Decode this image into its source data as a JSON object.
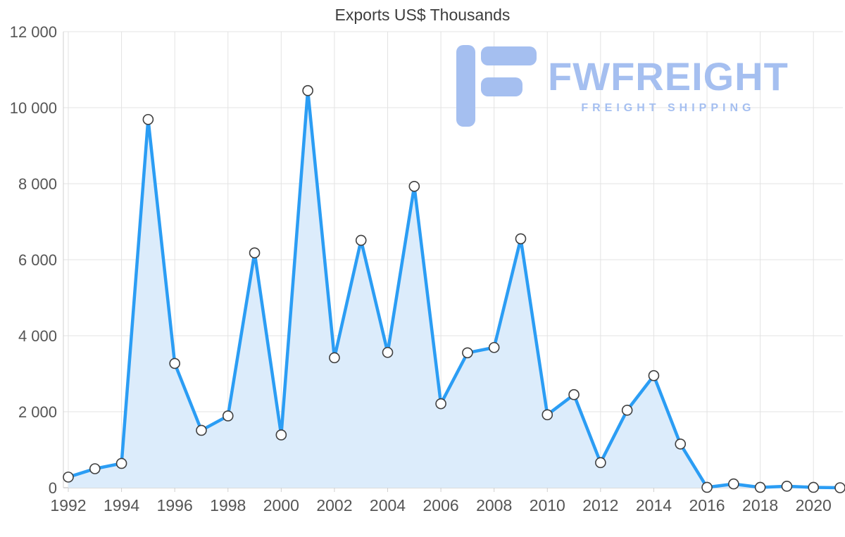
{
  "chart_data": {
    "type": "area",
    "title": "Exports US$ Thousands",
    "xlabel": "",
    "ylabel": "",
    "x": [
      1992,
      1993,
      1994,
      1995,
      1996,
      1997,
      1998,
      1999,
      2000,
      2001,
      2002,
      2003,
      2004,
      2005,
      2006,
      2007,
      2008,
      2009,
      2010,
      2011,
      2012,
      2013,
      2014,
      2015,
      2016,
      2017,
      2018,
      2019,
      2020,
      2021
    ],
    "values": [
      280,
      500,
      640,
      9690,
      3270,
      1510,
      1890,
      6180,
      1390,
      10450,
      3420,
      6510,
      3560,
      7930,
      2210,
      3550,
      3690,
      6550,
      1920,
      2450,
      660,
      2040,
      2950,
      1150,
      10,
      100,
      10,
      40,
      10,
      0
    ],
    "ylim": [
      0,
      12000
    ],
    "y_ticks": [
      0,
      2000,
      4000,
      6000,
      8000,
      10000,
      12000
    ],
    "y_tick_labels": [
      "0",
      "2 000",
      "4 000",
      "6 000",
      "8 000",
      "10 000",
      "12 000"
    ],
    "x_tick_step": 2,
    "grid": true,
    "legend": "none",
    "marker": "circle",
    "colors": {
      "line": "#2b9df4",
      "fill": "#dcecfb",
      "marker_fill": "#ffffff",
      "marker_stroke": "#3f3f3f",
      "grid": "#e3e3e3",
      "axis_line": "#cfcfcf",
      "axis_text": "#555555",
      "title_text": "#3d3d3d"
    }
  },
  "watermark": {
    "brand": "FWFREIGHT",
    "tagline": "FREIGHT SHIPPING",
    "color": "#a5bff0",
    "icon": "stylized-f-logo"
  }
}
